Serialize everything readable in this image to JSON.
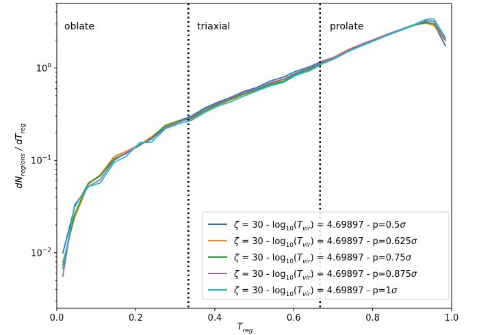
{
  "chart_data": {
    "type": "line",
    "xlabel": "T",
    "xlabel_sub": "reg",
    "ylabel_d1": "dN",
    "ylabel_sub1": "regions",
    "ylabel_sep": " / ",
    "ylabel_d2": "dT",
    "ylabel_sub2": "reg",
    "xlim": [
      0.0,
      1.0
    ],
    "ylim": [
      0.0025,
      5.0
    ],
    "yscale": "log",
    "xticks": [
      0.0,
      0.2,
      0.4,
      0.6,
      0.8,
      1.0
    ],
    "xtick_labels": [
      "0.0",
      "0.2",
      "0.4",
      "0.6",
      "0.8",
      "1.0"
    ],
    "ytick_base": "10",
    "ytick_exps": [
      "−2",
      "−1",
      "0"
    ],
    "ytick_values": [
      0.01,
      0.1,
      1.0
    ],
    "vlines": [
      0.3333,
      0.6667
    ],
    "regions": [
      "oblate",
      "triaxial",
      "prolate"
    ],
    "legend_position": "lower-right",
    "legend_entry": {
      "zeta": "ζ",
      "p1": " = 30 - log",
      "sub10": "10",
      "p2": "(",
      "tsym": "T",
      "tsub": "vir",
      "p3": ") = 4.69897 - p=",
      "sigma": "σ"
    },
    "x": [
      0.015,
      0.045,
      0.08,
      0.11,
      0.145,
      0.175,
      0.21,
      0.24,
      0.275,
      0.31,
      0.34,
      0.375,
      0.41,
      0.44,
      0.475,
      0.505,
      0.54,
      0.575,
      0.605,
      0.64,
      0.675,
      0.705,
      0.74,
      0.77,
      0.805,
      0.84,
      0.87,
      0.905,
      0.935,
      0.955,
      0.985
    ],
    "series": [
      {
        "name": "0.5",
        "color": "#1f77b4",
        "values": [
          0.0098,
          0.031,
          0.056,
          0.068,
          0.103,
          0.118,
          0.15,
          0.17,
          0.23,
          0.27,
          0.3,
          0.37,
          0.43,
          0.48,
          0.56,
          0.61,
          0.72,
          0.8,
          0.92,
          1.03,
          1.2,
          1.32,
          1.58,
          1.75,
          2.05,
          2.35,
          2.6,
          2.95,
          3.15,
          3.0,
          1.72
        ]
      },
      {
        "name": "0.625",
        "color": "#ff7f0e",
        "values": [
          0.0078,
          0.024,
          0.055,
          0.07,
          0.11,
          0.125,
          0.148,
          0.18,
          0.235,
          0.265,
          0.28,
          0.34,
          0.4,
          0.45,
          0.52,
          0.57,
          0.67,
          0.75,
          0.87,
          0.98,
          1.18,
          1.33,
          1.6,
          1.8,
          2.05,
          2.35,
          2.6,
          2.95,
          3.05,
          2.9,
          1.95
        ]
      },
      {
        "name": "0.75",
        "color": "#2ca02c",
        "values": [
          0.0072,
          0.026,
          0.057,
          0.068,
          0.104,
          0.12,
          0.145,
          0.175,
          0.24,
          0.27,
          0.285,
          0.345,
          0.41,
          0.46,
          0.53,
          0.58,
          0.66,
          0.72,
          0.86,
          0.96,
          1.15,
          1.3,
          1.55,
          1.75,
          2.0,
          2.3,
          2.55,
          2.9,
          3.1,
          3.0,
          2.05
        ]
      },
      {
        "name": "0.875",
        "color": "#9467bd",
        "values": [
          0.0055,
          0.033,
          0.052,
          0.062,
          0.1,
          0.12,
          0.148,
          0.17,
          0.225,
          0.26,
          0.29,
          0.36,
          0.42,
          0.47,
          0.55,
          0.59,
          0.69,
          0.76,
          0.88,
          1.0,
          1.16,
          1.31,
          1.57,
          1.78,
          2.03,
          2.33,
          2.6,
          2.95,
          3.25,
          3.2,
          2.0
        ]
      },
      {
        "name": "1",
        "color": "#17becf",
        "values": [
          0.0066,
          0.032,
          0.052,
          0.057,
          0.095,
          0.11,
          0.155,
          0.158,
          0.22,
          0.25,
          0.27,
          0.33,
          0.39,
          0.43,
          0.5,
          0.56,
          0.64,
          0.7,
          0.83,
          0.93,
          1.12,
          1.27,
          1.52,
          1.72,
          1.98,
          2.28,
          2.55,
          2.95,
          3.35,
          3.4,
          2.12
        ]
      }
    ]
  }
}
